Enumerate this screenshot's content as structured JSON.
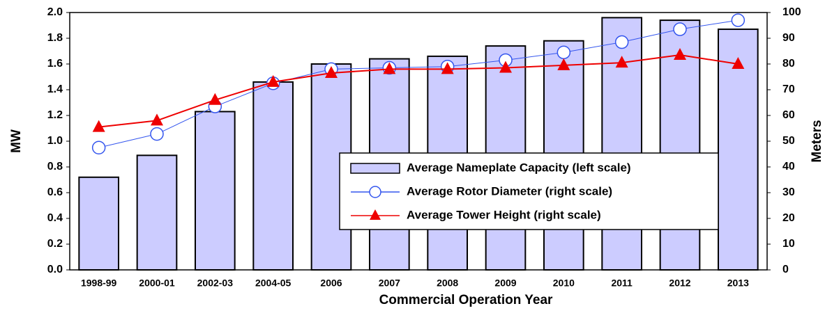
{
  "chart_data": {
    "type": "bar-line",
    "x_label": "Commercial Operation Year",
    "y_label": "MW",
    "y2_label": "Meters",
    "categories": [
      "1998-99",
      "2000-01",
      "2002-03",
      "2004-05",
      "2006",
      "2007",
      "2008",
      "2009",
      "2010",
      "2011",
      "2012",
      "2013"
    ],
    "series": [
      {
        "name": "Average Nameplate Capacity (left scale)",
        "type": "bar",
        "color": "#ccccff",
        "values": [
          0.72,
          0.89,
          1.23,
          1.46,
          1.6,
          1.64,
          1.66,
          1.74,
          1.78,
          1.96,
          1.94,
          1.87
        ]
      },
      {
        "name": "Average Rotor Diameter (right scale)",
        "type": "line",
        "marker": "circle",
        "axis": "y2",
        "color": "#3355ee",
        "values": [
          47.5,
          52.8,
          63.5,
          72.5,
          78,
          78.5,
          79,
          81.5,
          84.5,
          88.5,
          93.5,
          97
        ]
      },
      {
        "name": "Average Tower Height (right scale)",
        "type": "line",
        "marker": "triangle",
        "axis": "y2",
        "color": "#ee0000",
        "values": [
          55.5,
          58,
          66,
          73,
          76.5,
          78,
          78,
          78.5,
          79.5,
          80.5,
          83.5,
          80
        ]
      }
    ],
    "ylim": [
      0,
      2
    ],
    "yticks": [
      {
        "value": 0,
        "label": "0.0"
      },
      0.2,
      0.4,
      0.6,
      0.8,
      {
        "value": 1,
        "label": "1.0"
      },
      1.2,
      1.4,
      1.6,
      1.8,
      {
        "value": 2,
        "label": "2.0"
      }
    ],
    "y2lim": [
      0,
      100
    ],
    "y2ticks": [
      0,
      10,
      20,
      30,
      40,
      50,
      60,
      70,
      80,
      90,
      100
    ],
    "grid": false
  }
}
